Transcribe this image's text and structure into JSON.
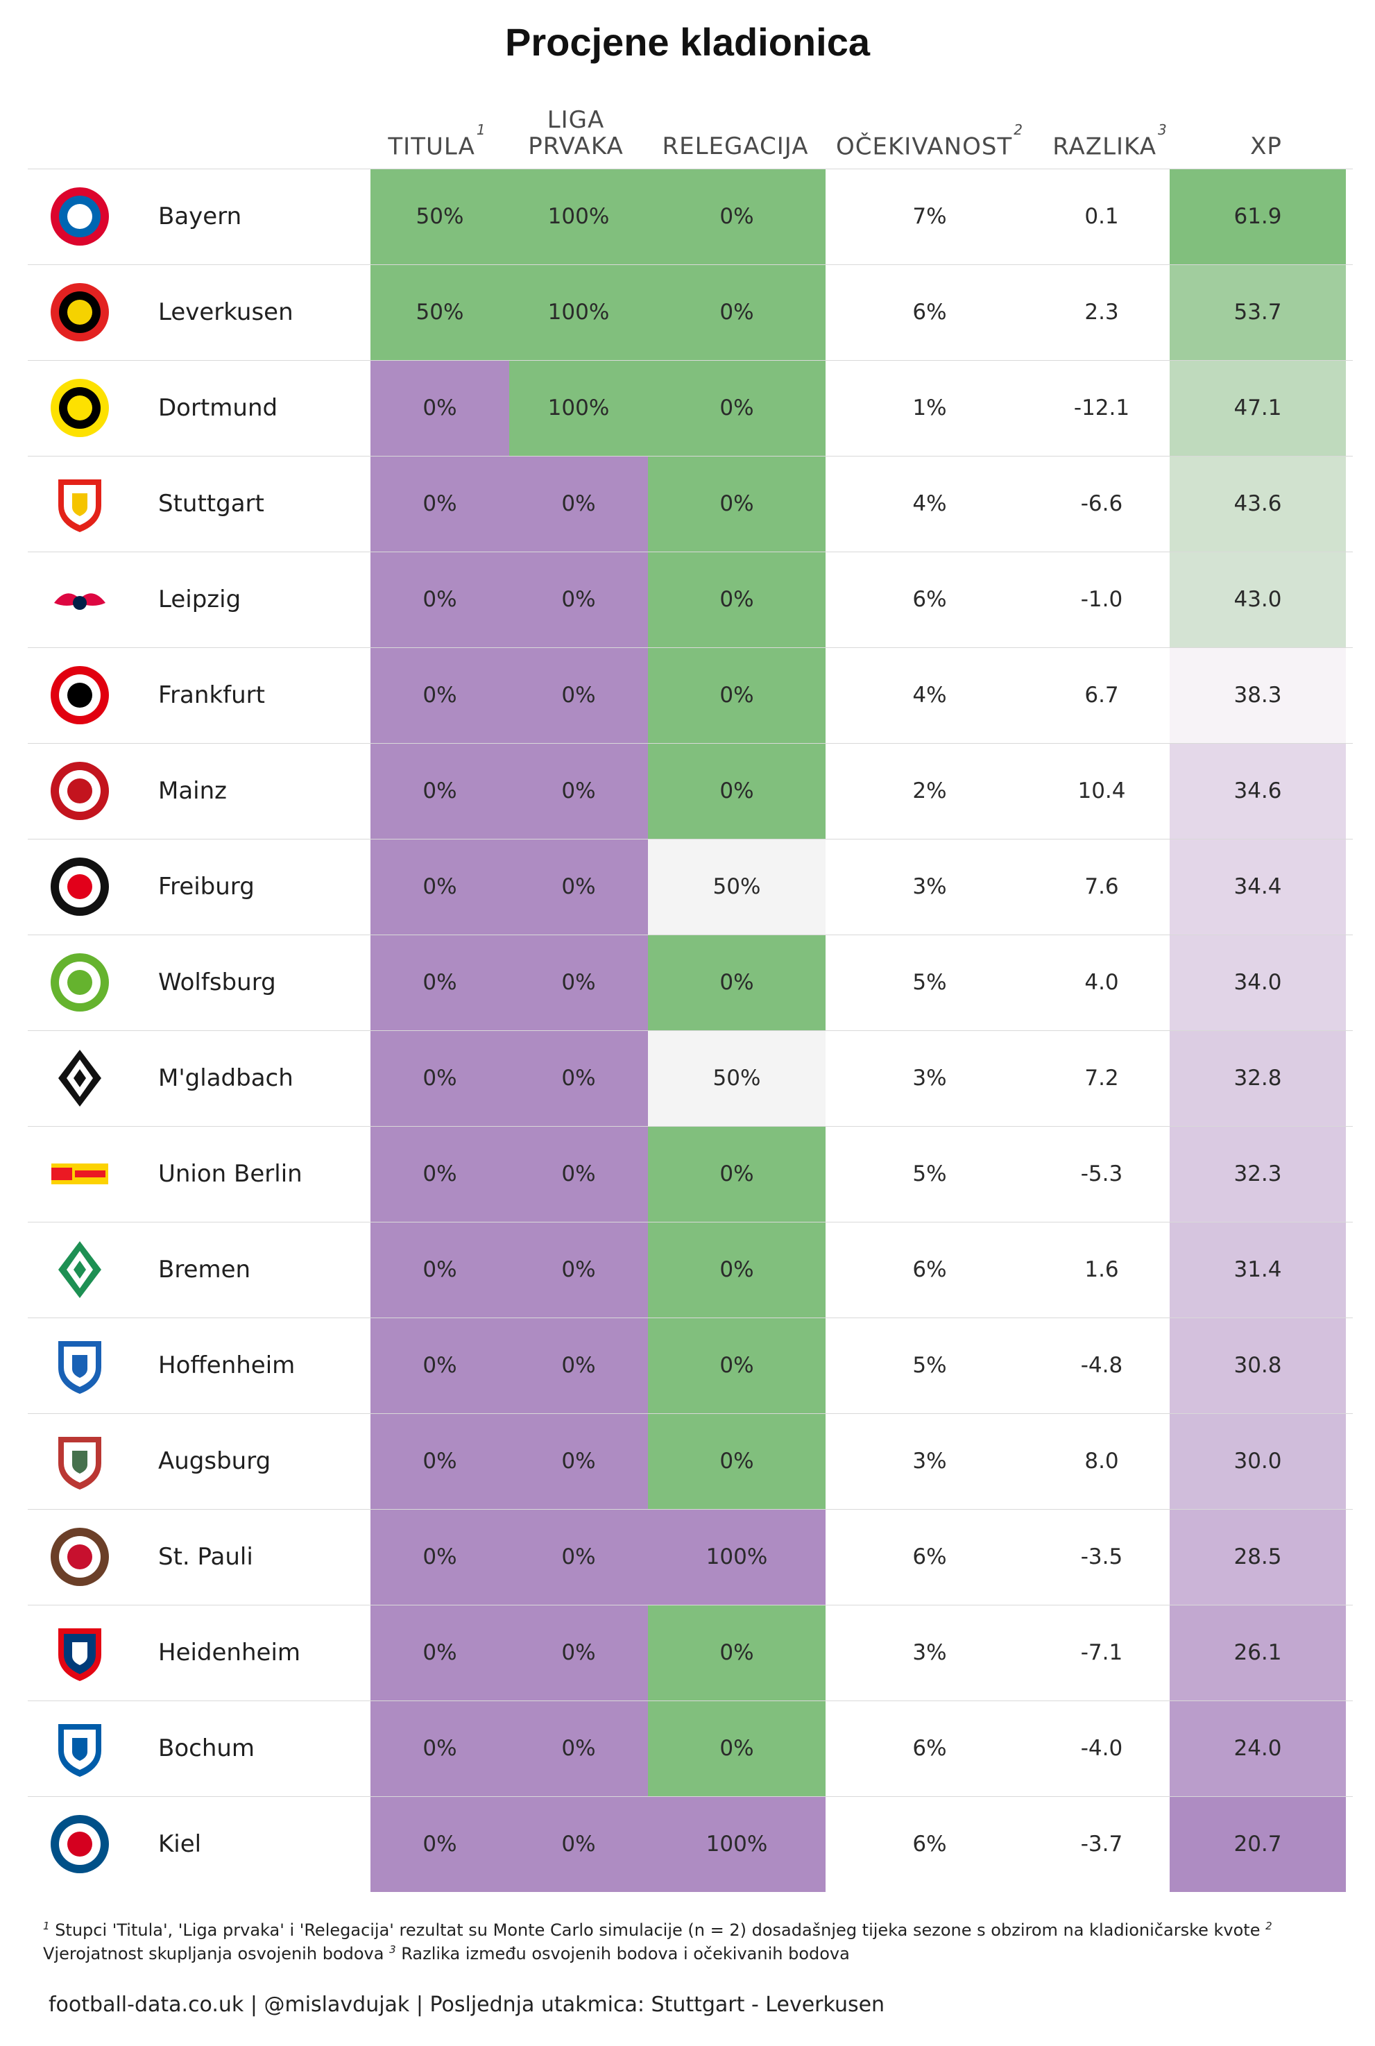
{
  "title": "Procjene kladionica",
  "headers": {
    "titula": "TITULA",
    "titula_sup": "1",
    "liga_1": "LIGA",
    "liga_2": "PRVAKA",
    "relegacija": "RELEGACIJA",
    "ocekivanost": "OČEKIVANOST",
    "ocekivanost_sup": "2",
    "razlika": "RAZLIKA",
    "razlika_sup": "3",
    "xp": "XP"
  },
  "colors": {
    "green": "#81bf7d",
    "purple": "#ae8cc2",
    "neutral": "#f4f4f4",
    "xp_high": "#81bf7d",
    "xp_mid": "#f7f3f7",
    "xp_low": "#ae8cc2"
  },
  "chart_data": {
    "type": "table",
    "columns": [
      "",
      "TITULA",
      "LIGA PRVAKA",
      "RELEGACIJA",
      "OČEKIVANOST",
      "RAZLIKA",
      "XP"
    ],
    "rows": [
      {
        "team": "Bayern",
        "titula": "50%",
        "liga": "100%",
        "relegacija": "0%",
        "ocekivanost": "7%",
        "razlika": "0.1",
        "xp": "61.9",
        "xp_value": 61.9,
        "titula_good": true,
        "liga_good": true,
        "rel_state": "good",
        "logo": "bayern-logo"
      },
      {
        "team": "Leverkusen",
        "titula": "50%",
        "liga": "100%",
        "relegacija": "0%",
        "ocekivanost": "6%",
        "razlika": "2.3",
        "xp": "53.7",
        "xp_value": 53.7,
        "titula_good": true,
        "liga_good": true,
        "rel_state": "good",
        "logo": "leverkusen-logo"
      },
      {
        "team": "Dortmund",
        "titula": "0%",
        "liga": "100%",
        "relegacija": "0%",
        "ocekivanost": "1%",
        "razlika": "-12.1",
        "xp": "47.1",
        "xp_value": 47.1,
        "titula_good": false,
        "liga_good": true,
        "rel_state": "good",
        "logo": "dortmund-logo"
      },
      {
        "team": "Stuttgart",
        "titula": "0%",
        "liga": "0%",
        "relegacija": "0%",
        "ocekivanost": "4%",
        "razlika": "-6.6",
        "xp": "43.6",
        "xp_value": 43.6,
        "titula_good": false,
        "liga_good": false,
        "rel_state": "good",
        "logo": "stuttgart-logo"
      },
      {
        "team": "Leipzig",
        "titula": "0%",
        "liga": "0%",
        "relegacija": "0%",
        "ocekivanost": "6%",
        "razlika": "-1.0",
        "xp": "43.0",
        "xp_value": 43.0,
        "titula_good": false,
        "liga_good": false,
        "rel_state": "good",
        "logo": "leipzig-logo"
      },
      {
        "team": "Frankfurt",
        "titula": "0%",
        "liga": "0%",
        "relegacija": "0%",
        "ocekivanost": "4%",
        "razlika": "6.7",
        "xp": "38.3",
        "xp_value": 38.3,
        "titula_good": false,
        "liga_good": false,
        "rel_state": "good",
        "logo": "frankfurt-logo"
      },
      {
        "team": "Mainz",
        "titula": "0%",
        "liga": "0%",
        "relegacija": "0%",
        "ocekivanost": "2%",
        "razlika": "10.4",
        "xp": "34.6",
        "xp_value": 34.6,
        "titula_good": false,
        "liga_good": false,
        "rel_state": "good",
        "logo": "mainz-logo"
      },
      {
        "team": "Freiburg",
        "titula": "0%",
        "liga": "0%",
        "relegacija": "50%",
        "ocekivanost": "3%",
        "razlika": "7.6",
        "xp": "34.4",
        "xp_value": 34.4,
        "titula_good": false,
        "liga_good": false,
        "rel_state": "neutral",
        "logo": "freiburg-logo"
      },
      {
        "team": "Wolfsburg",
        "titula": "0%",
        "liga": "0%",
        "relegacija": "0%",
        "ocekivanost": "5%",
        "razlika": "4.0",
        "xp": "34.0",
        "xp_value": 34.0,
        "titula_good": false,
        "liga_good": false,
        "rel_state": "good",
        "logo": "wolfsburg-logo"
      },
      {
        "team": "M'gladbach",
        "titula": "0%",
        "liga": "0%",
        "relegacija": "50%",
        "ocekivanost": "3%",
        "razlika": "7.2",
        "xp": "32.8",
        "xp_value": 32.8,
        "titula_good": false,
        "liga_good": false,
        "rel_state": "neutral",
        "logo": "gladbach-logo"
      },
      {
        "team": "Union Berlin",
        "titula": "0%",
        "liga": "0%",
        "relegacija": "0%",
        "ocekivanost": "5%",
        "razlika": "-5.3",
        "xp": "32.3",
        "xp_value": 32.3,
        "titula_good": false,
        "liga_good": false,
        "rel_state": "good",
        "logo": "union-berlin-logo"
      },
      {
        "team": "Bremen",
        "titula": "0%",
        "liga": "0%",
        "relegacija": "0%",
        "ocekivanost": "6%",
        "razlika": "1.6",
        "xp": "31.4",
        "xp_value": 31.4,
        "titula_good": false,
        "liga_good": false,
        "rel_state": "good",
        "logo": "bremen-logo"
      },
      {
        "team": "Hoffenheim",
        "titula": "0%",
        "liga": "0%",
        "relegacija": "0%",
        "ocekivanost": "5%",
        "razlika": "-4.8",
        "xp": "30.8",
        "xp_value": 30.8,
        "titula_good": false,
        "liga_good": false,
        "rel_state": "good",
        "logo": "hoffenheim-logo"
      },
      {
        "team": "Augsburg",
        "titula": "0%",
        "liga": "0%",
        "relegacija": "0%",
        "ocekivanost": "3%",
        "razlika": "8.0",
        "xp": "30.0",
        "xp_value": 30.0,
        "titula_good": false,
        "liga_good": false,
        "rel_state": "good",
        "logo": "augsburg-logo"
      },
      {
        "team": "St. Pauli",
        "titula": "0%",
        "liga": "0%",
        "relegacija": "100%",
        "ocekivanost": "6%",
        "razlika": "-3.5",
        "xp": "28.5",
        "xp_value": 28.5,
        "titula_good": false,
        "liga_good": false,
        "rel_state": "bad",
        "logo": "st-pauli-logo"
      },
      {
        "team": "Heidenheim",
        "titula": "0%",
        "liga": "0%",
        "relegacija": "0%",
        "ocekivanost": "3%",
        "razlika": "-7.1",
        "xp": "26.1",
        "xp_value": 26.1,
        "titula_good": false,
        "liga_good": false,
        "rel_state": "good",
        "logo": "heidenheim-logo"
      },
      {
        "team": "Bochum",
        "titula": "0%",
        "liga": "0%",
        "relegacija": "0%",
        "ocekivanost": "6%",
        "razlika": "-4.0",
        "xp": "24.0",
        "xp_value": 24.0,
        "titula_good": false,
        "liga_good": false,
        "rel_state": "good",
        "logo": "bochum-logo"
      },
      {
        "team": "Kiel",
        "titula": "0%",
        "liga": "0%",
        "relegacija": "100%",
        "ocekivanost": "6%",
        "razlika": "-3.7",
        "xp": "20.7",
        "xp_value": 20.7,
        "titula_good": false,
        "liga_good": false,
        "rel_state": "bad",
        "logo": "kiel-logo"
      }
    ]
  },
  "footnote": {
    "sup1": "1",
    "text1": "Stupci 'Titula', 'Liga prvaka' i 'Relegacija' rezultat su Monte Carlo simulacije (n = 2) dosadašnjeg tijeka sezone s obzirom na kladioničarske kvote",
    "sup2": "2",
    "text2": "Vjerojatnost skupljanja osvojenih bodova",
    "sup3": "3",
    "text3": "Razlika između osvojenih bodova i očekivanih bodova"
  },
  "source": "football-data.co.uk | @mislavdujak | Posljednja utakmica: Stuttgart - Leverkusen"
}
